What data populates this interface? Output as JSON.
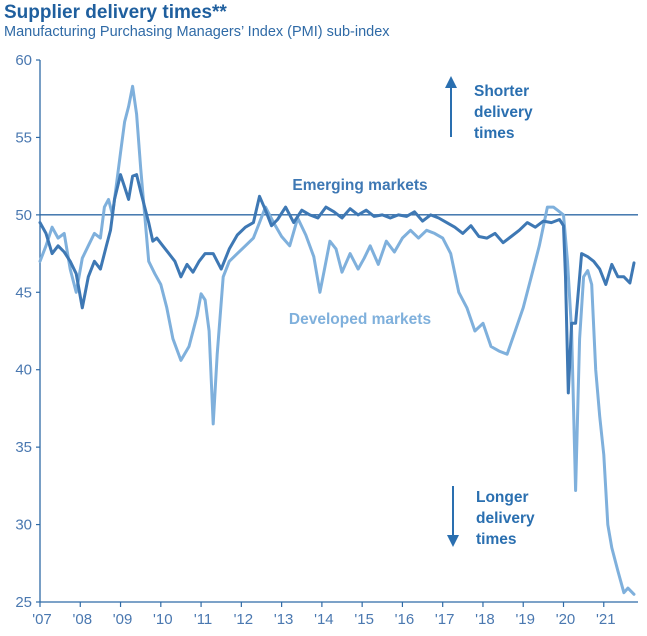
{
  "header": {
    "title": "Supplier delivery times**",
    "subtitle": "Manufacturing Purchasing Managers’ Index (PMI) sub-index"
  },
  "colors": {
    "emerging": "#3e78b4",
    "developed": "#7fb0dc",
    "axis": "#2f6aa6",
    "text": "#2f6aa6",
    "annotation": "#2a6fb0"
  },
  "icons": {
    "up": "arrow-up-icon",
    "down": "arrow-down-icon"
  },
  "chart_data": {
    "type": "line",
    "title": "Supplier delivery times**",
    "subtitle": "Manufacturing Purchasing Managers’ Index (PMI) sub-index",
    "xlabel": "",
    "ylabel": "",
    "ylim": [
      25,
      60
    ],
    "xlim": [
      2007.0,
      2021.85
    ],
    "yticks": [
      25,
      30,
      35,
      40,
      45,
      50,
      55,
      60
    ],
    "xtick_labels": [
      "'07",
      "'08",
      "'09",
      "'10",
      "'11",
      "'12",
      "'13",
      "'14",
      "'15",
      "'16",
      "'17",
      "'18",
      "'19",
      "'20",
      "'21"
    ],
    "xtick_years": [
      2007,
      2008,
      2009,
      2010,
      2011,
      2012,
      2013,
      2014,
      2015,
      2016,
      2017,
      2018,
      2019,
      2020,
      2021
    ],
    "reference_line": 50,
    "annotations": {
      "shorter": [
        "Shorter",
        "delivery",
        "times"
      ],
      "longer": [
        "Longer",
        "delivery",
        "times"
      ]
    },
    "series": [
      {
        "name": "Emerging markets",
        "x": [
          2007.0,
          2007.15,
          2007.3,
          2007.45,
          2007.6,
          2007.75,
          2007.9,
          2008.05,
          2008.2,
          2008.35,
          2008.5,
          2008.65,
          2008.75,
          2008.85,
          2009.0,
          2009.1,
          2009.2,
          2009.3,
          2009.4,
          2009.5,
          2009.6,
          2009.7,
          2009.8,
          2009.9,
          2010.05,
          2010.2,
          2010.35,
          2010.5,
          2010.65,
          2010.8,
          2010.95,
          2011.1,
          2011.3,
          2011.5,
          2011.7,
          2011.9,
          2012.1,
          2012.3,
          2012.45,
          2012.6,
          2012.75,
          2012.9,
          2013.1,
          2013.3,
          2013.5,
          2013.7,
          2013.9,
          2014.1,
          2014.3,
          2014.5,
          2014.7,
          2014.9,
          2015.1,
          2015.3,
          2015.5,
          2015.7,
          2015.9,
          2016.1,
          2016.3,
          2016.5,
          2016.7,
          2016.9,
          2017.1,
          2017.3,
          2017.5,
          2017.7,
          2017.9,
          2018.1,
          2018.3,
          2018.5,
          2018.7,
          2018.9,
          2019.1,
          2019.3,
          2019.5,
          2019.7,
          2019.9,
          2020.0,
          2020.05,
          2020.12,
          2020.2,
          2020.3,
          2020.45,
          2020.6,
          2020.75,
          2020.9,
          2021.05,
          2021.2,
          2021.35,
          2021.5,
          2021.65,
          2021.75
        ],
        "values": [
          49.5,
          48.8,
          47.5,
          48.0,
          47.6,
          47.0,
          46.2,
          44.0,
          46.0,
          47.0,
          46.5,
          48.0,
          49.0,
          51.0,
          52.6,
          51.8,
          51.0,
          52.5,
          52.6,
          51.5,
          50.5,
          49.5,
          48.3,
          48.5,
          48.0,
          47.5,
          47.0,
          46.0,
          46.8,
          46.3,
          47.0,
          47.5,
          47.5,
          46.5,
          47.8,
          48.7,
          49.2,
          49.5,
          51.2,
          50.3,
          49.3,
          49.7,
          50.5,
          49.5,
          50.3,
          50.0,
          49.8,
          50.5,
          50.2,
          49.8,
          50.4,
          50.0,
          50.3,
          49.9,
          50.0,
          49.8,
          50.0,
          49.9,
          50.2,
          49.6,
          50.0,
          49.8,
          49.5,
          49.2,
          48.8,
          49.3,
          48.6,
          48.5,
          48.8,
          48.2,
          48.6,
          49.0,
          49.5,
          49.2,
          49.6,
          49.5,
          49.7,
          49.3,
          46.0,
          38.5,
          43.0,
          43.0,
          47.5,
          47.3,
          47.0,
          46.5,
          45.5,
          46.8,
          46.0,
          46.0,
          45.6,
          46.9
        ]
      },
      {
        "name": "Developed markets",
        "x": [
          2007.0,
          2007.15,
          2007.3,
          2007.45,
          2007.6,
          2007.75,
          2007.9,
          2008.05,
          2008.2,
          2008.35,
          2008.5,
          2008.6,
          2008.7,
          2008.8,
          2008.9,
          2009.0,
          2009.1,
          2009.2,
          2009.3,
          2009.4,
          2009.5,
          2009.6,
          2009.7,
          2009.85,
          2010.0,
          2010.15,
          2010.3,
          2010.5,
          2010.7,
          2010.9,
          2011.0,
          2011.1,
          2011.2,
          2011.3,
          2011.4,
          2011.55,
          2011.7,
          2011.9,
          2012.1,
          2012.3,
          2012.45,
          2012.6,
          2012.8,
          2013.0,
          2013.2,
          2013.4,
          2013.6,
          2013.8,
          2013.95,
          2014.05,
          2014.2,
          2014.35,
          2014.5,
          2014.7,
          2014.9,
          2015.05,
          2015.2,
          2015.4,
          2015.6,
          2015.8,
          2016.0,
          2016.2,
          2016.4,
          2016.6,
          2016.8,
          2017.0,
          2017.2,
          2017.4,
          2017.6,
          2017.8,
          2018.0,
          2018.2,
          2018.4,
          2018.6,
          2018.8,
          2019.0,
          2019.2,
          2019.4,
          2019.6,
          2019.75,
          2019.85,
          2020.0,
          2020.1,
          2020.2,
          2020.3,
          2020.4,
          2020.5,
          2020.6,
          2020.7,
          2020.8,
          2020.9,
          2021.0,
          2021.1,
          2021.2,
          2021.35,
          2021.5,
          2021.6,
          2021.75
        ],
        "values": [
          47.0,
          48.0,
          49.2,
          48.5,
          48.8,
          46.5,
          45.0,
          47.2,
          48.0,
          48.8,
          48.5,
          50.5,
          51.0,
          50.0,
          52.0,
          54.0,
          56.0,
          57.0,
          58.3,
          56.5,
          53.0,
          50.0,
          47.0,
          46.2,
          45.5,
          44.0,
          42.0,
          40.6,
          41.5,
          43.5,
          44.9,
          44.5,
          42.5,
          36.5,
          41.0,
          46.0,
          47.0,
          47.5,
          48.0,
          48.5,
          49.5,
          50.5,
          49.5,
          48.6,
          48.0,
          49.8,
          48.7,
          47.3,
          45.0,
          46.3,
          48.3,
          47.8,
          46.3,
          47.5,
          46.5,
          47.2,
          48.0,
          46.8,
          48.3,
          47.6,
          48.5,
          49.0,
          48.5,
          49.0,
          48.8,
          48.5,
          47.5,
          45.0,
          44.0,
          42.5,
          43.0,
          41.5,
          41.2,
          41.0,
          42.5,
          44.0,
          46.0,
          48.0,
          50.5,
          50.5,
          50.3,
          50.0,
          47.0,
          42.5,
          32.2,
          42.0,
          46.0,
          46.4,
          45.5,
          40.0,
          37.0,
          34.5,
          30.0,
          28.5,
          27.0,
          25.6,
          25.9,
          25.5
        ]
      }
    ]
  }
}
